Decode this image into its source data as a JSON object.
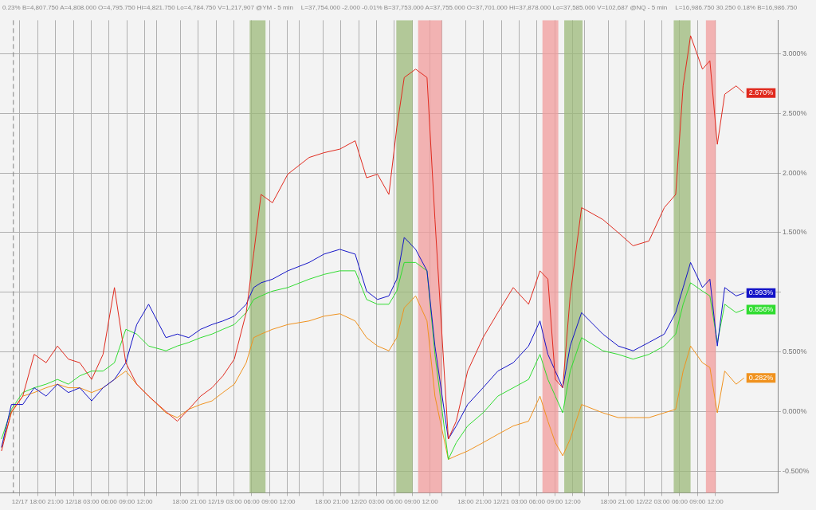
{
  "chart_data": {
    "type": "line",
    "annotations": [
      "0.23%  B=4,807.750  A=4,808.000  O=4,795.750  Hi=4,821.750  Lo=4,784.750  V=1,217,907  @YM - 5 min",
      "L=37,754.000  -2.000  -0.01%  B=37,753.000  A=37,755.000  O=37,701.000  Hi=37,878.000  Lo=37,585.000  V=102,687  @NQ - 5 min",
      "L=16,986.750  30.250  0.18%  B=16,986.750"
    ],
    "x": [
      "--12-17T11:55",
      "--12-17T13:35",
      "--12-17T15:30",
      "--12-17T17:25",
      "--12-17T19:25",
      "--12-17T21:20",
      "--12-17T23:10",
      "--12-18T01:05",
      "--12-18T03:05",
      "--12-18T05:00",
      "--12-18T06:55",
      "--12-18T08:50",
      "--12-18T10:40",
      "--12-18T12:40",
      "--12-18T15:35",
      "--12-18T17:30",
      "--12-18T19:25",
      "--12-18T21:25",
      "--12-18T23:20",
      "--12-19T01:10",
      "--12-19T03:05",
      "--12-19T05:05",
      "--12-19T06:20",
      "--12-19T07:35",
      "--12-19T09:30",
      "--12-19T12:05",
      "--12-19T15:40",
      "--12-19T18:10",
      "--12-19T20:50",
      "--12-19T23:25",
      "--12-20T01:20",
      "--12-20T03:10",
      "--12-20T05:05",
      "--12-20T06:25",
      "--12-20T07:40",
      "--12-20T09:35",
      "--12-20T11:30",
      "--12-20T12:50",
      "--12-20T15:05",
      "--12-20T16:25",
      "--12-20T18:20",
      "--12-20T20:55",
      "--12-20T23:25",
      "--12-21T02:00",
      "--12-21T04:35",
      "--12-21T06:30",
      "--12-21T07:50",
      "--12-21T09:05",
      "--12-21T10:20",
      "--12-21T11:35",
      "--12-21T13:30",
      "--12-21T17:05",
      "--12-21T19:40",
      "--12-21T22:10",
      "--12-22T00:50",
      "--12-22T03:25",
      "--12-22T05:20",
      "--12-22T06:35",
      "--12-22T07:50",
      "--12-22T09:50",
      "--12-22T11:05",
      "--12-22T12:20",
      "--12-22T13:35",
      "--12-22T15:30",
      "--12-22T16:50"
    ],
    "series": [
      {
        "color": "#e02a1e",
        "values": [
          -0.33,
          0.0,
          0.13,
          0.48,
          0.41,
          0.55,
          0.44,
          0.41,
          0.27,
          0.48,
          1.04,
          0.41,
          0.23,
          0.13,
          0.0,
          -0.08,
          0.02,
          0.13,
          0.2,
          0.3,
          0.44,
          0.83,
          1.32,
          1.82,
          1.75,
          1.99,
          2.13,
          2.17,
          2.2,
          2.27,
          1.96,
          1.99,
          1.82,
          2.38,
          2.8,
          2.87,
          2.8,
          1.61,
          -0.23,
          -0.08,
          0.34,
          0.62,
          0.83,
          1.04,
          0.9,
          1.18,
          1.11,
          0.27,
          0.2,
          0.97,
          1.71,
          1.61,
          1.5,
          1.39,
          1.43,
          1.71,
          1.82,
          2.73,
          3.15,
          2.87,
          2.94,
          2.24,
          2.66,
          2.73,
          2.67
        ],
        "value_labels": [
          null,
          null,
          null,
          null,
          null,
          null,
          null,
          null,
          null,
          null,
          null,
          null,
          null,
          null,
          null,
          null,
          null,
          null,
          null,
          null,
          null,
          null,
          null,
          null,
          null,
          null,
          null,
          null,
          null,
          null,
          null,
          null,
          null,
          null,
          null,
          null,
          null,
          null,
          null,
          null,
          null,
          null,
          null,
          null,
          null,
          null,
          null,
          null,
          null,
          null,
          null,
          null,
          null,
          null,
          null,
          null,
          null,
          null,
          null,
          null,
          null,
          null,
          null,
          null,
          "2.670%"
        ]
      },
      {
        "color": "#1414c8",
        "values": [
          -0.3,
          0.06,
          0.06,
          0.2,
          0.13,
          0.23,
          0.16,
          0.2,
          0.09,
          0.2,
          0.27,
          0.41,
          0.73,
          0.9,
          0.62,
          0.65,
          0.62,
          0.69,
          0.73,
          0.76,
          0.8,
          0.9,
          1.04,
          1.08,
          1.11,
          1.18,
          1.25,
          1.32,
          1.36,
          1.32,
          1.01,
          0.94,
          0.97,
          1.11,
          1.46,
          1.36,
          1.18,
          0.55,
          -0.23,
          -0.12,
          0.06,
          0.2,
          0.34,
          0.41,
          0.55,
          0.76,
          0.48,
          0.34,
          0.2,
          0.55,
          0.83,
          0.65,
          0.55,
          0.51,
          0.58,
          0.65,
          0.83,
          1.04,
          1.25,
          1.04,
          1.11,
          0.55,
          1.04,
          0.97,
          0.993
        ],
        "value_labels": [
          null,
          null,
          null,
          null,
          null,
          null,
          null,
          null,
          null,
          null,
          null,
          null,
          null,
          null,
          null,
          null,
          null,
          null,
          null,
          null,
          null,
          null,
          null,
          null,
          null,
          null,
          null,
          null,
          null,
          null,
          null,
          null,
          null,
          null,
          null,
          null,
          null,
          null,
          null,
          null,
          null,
          null,
          null,
          null,
          null,
          null,
          null,
          null,
          null,
          null,
          null,
          null,
          null,
          null,
          null,
          null,
          null,
          null,
          null,
          null,
          null,
          null,
          null,
          null,
          "0.993%"
        ]
      },
      {
        "color": "#30dc30",
        "values": [
          -0.23,
          0.02,
          0.16,
          0.2,
          0.23,
          0.27,
          0.23,
          0.3,
          0.34,
          0.34,
          0.41,
          0.69,
          0.65,
          0.55,
          0.51,
          0.55,
          0.58,
          0.62,
          0.65,
          0.69,
          0.73,
          0.83,
          0.94,
          0.97,
          1.01,
          1.04,
          1.11,
          1.15,
          1.18,
          1.18,
          0.94,
          0.9,
          0.9,
          1.01,
          1.25,
          1.25,
          1.18,
          0.48,
          -0.4,
          -0.26,
          -0.12,
          -0.01,
          0.13,
          0.2,
          0.27,
          0.48,
          0.27,
          0.13,
          -0.01,
          0.34,
          0.62,
          0.51,
          0.48,
          0.44,
          0.48,
          0.55,
          0.65,
          0.9,
          1.08,
          1.01,
          0.97,
          0.58,
          0.9,
          0.83,
          0.856
        ],
        "value_labels": [
          null,
          null,
          null,
          null,
          null,
          null,
          null,
          null,
          null,
          null,
          null,
          null,
          null,
          null,
          null,
          null,
          null,
          null,
          null,
          null,
          null,
          null,
          null,
          null,
          null,
          null,
          null,
          null,
          null,
          null,
          null,
          null,
          null,
          null,
          null,
          null,
          null,
          null,
          null,
          null,
          null,
          null,
          null,
          null,
          null,
          null,
          null,
          null,
          null,
          null,
          null,
          null,
          null,
          null,
          null,
          null,
          null,
          null,
          null,
          null,
          null,
          null,
          null,
          null,
          "0.856%"
        ]
      },
      {
        "color": "#f0921e",
        "values": [
          -0.3,
          -0.01,
          0.13,
          0.16,
          0.2,
          0.23,
          0.2,
          0.2,
          0.16,
          0.2,
          0.27,
          0.34,
          0.23,
          0.13,
          -0.01,
          -0.05,
          0.02,
          0.06,
          0.09,
          0.16,
          0.23,
          0.41,
          0.62,
          0.65,
          0.69,
          0.73,
          0.76,
          0.8,
          0.82,
          0.76,
          0.62,
          0.55,
          0.51,
          0.62,
          0.87,
          0.97,
          0.76,
          0.13,
          -0.4,
          -0.37,
          -0.33,
          -0.26,
          -0.19,
          -0.12,
          -0.08,
          0.13,
          -0.08,
          -0.26,
          -0.37,
          -0.23,
          0.06,
          -0.01,
          -0.05,
          -0.05,
          -0.05,
          -0.01,
          0.02,
          0.34,
          0.55,
          0.41,
          0.37,
          -0.01,
          0.34,
          0.23,
          0.282
        ],
        "value_labels": [
          null,
          null,
          null,
          null,
          null,
          null,
          null,
          null,
          null,
          null,
          null,
          null,
          null,
          null,
          null,
          null,
          null,
          null,
          null,
          null,
          null,
          null,
          null,
          null,
          null,
          null,
          null,
          null,
          null,
          null,
          null,
          null,
          null,
          null,
          null,
          null,
          null,
          null,
          null,
          null,
          null,
          null,
          null,
          null,
          null,
          null,
          null,
          null,
          null,
          null,
          null,
          null,
          null,
          null,
          null,
          null,
          null,
          null,
          null,
          null,
          null,
          null,
          null,
          null,
          "0.282%"
        ]
      }
    ],
    "xlim": [
      "--12-17T11:40",
      "--12-22T22:30"
    ],
    "xticks": [
      {
        "value": "--12-17T15:00",
        "label": "12/17"
      },
      {
        "value": "--12-17T18:00",
        "label": "18:00"
      },
      {
        "value": "--12-17T21:00",
        "label": "21:00"
      },
      {
        "value": "--12-18T00:00",
        "label": "12/18"
      },
      {
        "value": "--12-18T03:00",
        "label": "03:00"
      },
      {
        "value": "--12-18T06:00",
        "label": "06:00"
      },
      {
        "value": "--12-18T09:00",
        "label": "09:00"
      },
      {
        "value": "--12-18T12:00",
        "label": "12:00"
      },
      {
        "value": "--12-18T14:00",
        "label": null
      },
      {
        "value": "--12-18T18:00",
        "label": "18:00"
      },
      {
        "value": "--12-18T21:00",
        "label": "21:00"
      },
      {
        "value": "--12-19T00:00",
        "label": "12/19"
      },
      {
        "value": "--12-19T03:00",
        "label": "03:00"
      },
      {
        "value": "--12-19T06:00",
        "label": "06:00"
      },
      {
        "value": "--12-19T09:00",
        "label": "09:00"
      },
      {
        "value": "--12-19T12:00",
        "label": "12:00"
      },
      {
        "value": "--12-19T14:00",
        "label": null
      },
      {
        "value": "--12-19T18:00",
        "label": "18:00"
      },
      {
        "value": "--12-19T21:00",
        "label": "21:00"
      },
      {
        "value": "--12-20T00:00",
        "label": "12/20"
      },
      {
        "value": "--12-20T03:00",
        "label": "03:00"
      },
      {
        "value": "--12-20T06:00",
        "label": "06:00"
      },
      {
        "value": "--12-20T09:00",
        "label": "09:00"
      },
      {
        "value": "--12-20T12:00",
        "label": "12:00"
      },
      {
        "value": "--12-20T14:00",
        "label": null
      },
      {
        "value": "--12-20T18:00",
        "label": "18:00"
      },
      {
        "value": "--12-20T21:00",
        "label": "21:00"
      },
      {
        "value": "--12-21T00:00",
        "label": "12/21"
      },
      {
        "value": "--12-21T03:00",
        "label": "03:00"
      },
      {
        "value": "--12-21T06:00",
        "label": "06:00"
      },
      {
        "value": "--12-21T09:00",
        "label": "09:00"
      },
      {
        "value": "--12-21T12:00",
        "label": "12:00"
      },
      {
        "value": "--12-21T14:00",
        "label": null
      },
      {
        "value": "--12-21T18:00",
        "label": "18:00"
      },
      {
        "value": "--12-21T21:00",
        "label": "21:00"
      },
      {
        "value": "--12-22T00:00",
        "label": "12/22"
      },
      {
        "value": "--12-22T03:00",
        "label": "03:00"
      },
      {
        "value": "--12-22T06:00",
        "label": "06:00"
      },
      {
        "value": "--12-22T09:00",
        "label": "09:00"
      },
      {
        "value": "--12-22T12:00",
        "label": "12:00"
      }
    ],
    "ylim": [
      -0.68,
      3.28
    ],
    "yticks": [
      {
        "value": -0.5,
        "label": "-0.500%"
      },
      {
        "value": 0,
        "label": "0.000%"
      },
      {
        "value": 0.5,
        "label": "0.500%"
      },
      {
        "value": 1,
        "label": null
      },
      {
        "value": 1.5,
        "label": "1.500%"
      },
      {
        "value": 2,
        "label": "2.000%"
      },
      {
        "value": 2.5,
        "label": "2.500%"
      },
      {
        "value": 3,
        "label": "3.000%"
      }
    ],
    "grid": true,
    "marker": "none",
    "line_style": "solid",
    "ref_lines": [
      {
        "axis": "x",
        "value": "--12-17T13:55",
        "line_style": "dashed",
        "color": "#808080"
      }
    ],
    "bands": [
      {
        "axis": "x",
        "from": "--12-19T05:40",
        "to": "--12-19T08:20",
        "color": "#9cb97a"
      },
      {
        "axis": "x",
        "from": "--12-20T06:20",
        "to": "--12-20T09:05",
        "color": "#9cb97a"
      },
      {
        "axis": "x",
        "from": "--12-20T10:00",
        "to": "--12-20T14:00",
        "color": "#f29c9c"
      },
      {
        "axis": "x",
        "from": "--12-21T06:55",
        "to": "--12-21T09:35",
        "color": "#f29c9c"
      },
      {
        "axis": "x",
        "from": "--12-21T10:35",
        "to": "--12-21T13:40",
        "color": "#9cb97a"
      },
      {
        "axis": "x",
        "from": "--12-22T05:00",
        "to": "--12-22T07:50",
        "color": "#9cb97a"
      },
      {
        "axis": "x",
        "from": "--12-22T10:25",
        "to": "--12-22T12:05",
        "color": "#f29c9c"
      }
    ]
  }
}
